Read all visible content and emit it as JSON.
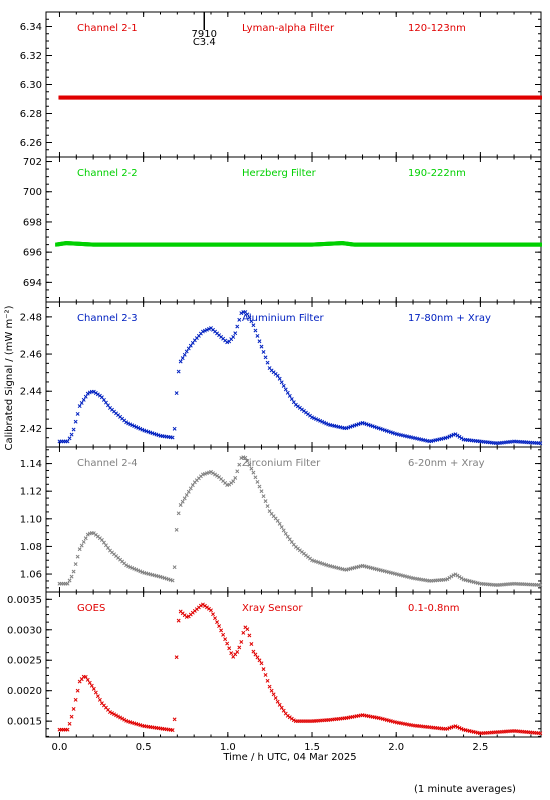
{
  "chart_data": {
    "type": "scatter",
    "ylabel": "Calibrated Signal / (mW m⁻²)",
    "xlabel": "Time / h UTC, 04 Mar 2025",
    "footnote": "(1 minute averages)",
    "x_ticks": [
      "0.0",
      "0.5",
      "1.0",
      "1.5",
      "2.0",
      "2.5"
    ],
    "xlim": [
      -0.08,
      2.86
    ],
    "flare_marker": {
      "x": 0.86,
      "line1": "7910",
      "line2": "C3.4"
    },
    "panels": [
      {
        "channel": "Channel 2-1",
        "filter": "Lyman-alpha Filter",
        "band": "120-123nm",
        "color": "#e00000",
        "ylim": [
          6.25,
          6.35
        ],
        "y_ticks": [
          "6.26",
          "6.28",
          "6.30",
          "6.32",
          "6.34"
        ],
        "x": [
          0.0,
          0.5,
          1.0,
          1.5,
          2.0,
          2.5,
          2.86
        ],
        "y": [
          6.291,
          6.291,
          6.291,
          6.291,
          6.291,
          6.291,
          6.291
        ]
      },
      {
        "channel": "Channel 2-2",
        "filter": "Herzberg Filter",
        "band": "190-222nm",
        "color": "#00d000",
        "ylim": [
          692.7,
          702.3
        ],
        "y_ticks": [
          "694",
          "696",
          "698",
          "700",
          "702"
        ],
        "x": [
          -0.02,
          0.04,
          0.2,
          0.5,
          1.0,
          1.5,
          1.68,
          1.75,
          2.0,
          2.5,
          2.86
        ],
        "y": [
          696.5,
          696.6,
          696.5,
          696.5,
          696.5,
          696.5,
          696.6,
          696.5,
          696.5,
          696.5,
          696.5
        ]
      },
      {
        "channel": "Channel 2-3",
        "filter": "Aluminium Filter",
        "band": "17-80nm + Xray",
        "color": "#0020c0",
        "ylim": [
          2.41,
          2.488
        ],
        "y_ticks": [
          "2.42",
          "2.44",
          "2.46",
          "2.48"
        ],
        "x": [
          0.0,
          0.05,
          0.08,
          0.12,
          0.17,
          0.2,
          0.25,
          0.3,
          0.4,
          0.5,
          0.6,
          0.68,
          0.69,
          0.7,
          0.72,
          0.76,
          0.8,
          0.85,
          0.9,
          0.95,
          1.0,
          1.04,
          1.08,
          1.1,
          1.12,
          1.15,
          1.2,
          1.25,
          1.3,
          1.35,
          1.4,
          1.5,
          1.6,
          1.7,
          1.8,
          1.9,
          2.0,
          2.1,
          2.2,
          2.3,
          2.35,
          2.4,
          2.5,
          2.6,
          2.7,
          2.86
        ],
        "y": [
          2.413,
          2.413,
          2.418,
          2.432,
          2.439,
          2.44,
          2.437,
          2.431,
          2.423,
          2.419,
          2.416,
          2.415,
          2.427,
          2.447,
          2.456,
          2.462,
          2.467,
          2.472,
          2.474,
          2.47,
          2.466,
          2.47,
          2.482,
          2.483,
          2.481,
          2.476,
          2.464,
          2.452,
          2.448,
          2.44,
          2.433,
          2.426,
          2.422,
          2.42,
          2.423,
          2.42,
          2.417,
          2.415,
          2.413,
          2.415,
          2.417,
          2.414,
          2.413,
          2.412,
          2.413,
          2.412
        ]
      },
      {
        "channel": "Channel 2-4",
        "filter": "Zirconium Filter",
        "band": "6-20nm + Xray",
        "color": "#808080",
        "ylim": [
          1.047,
          1.152
        ],
        "y_ticks": [
          "1.06",
          "1.08",
          "1.10",
          "1.12",
          "1.14"
        ],
        "x": [
          0.0,
          0.05,
          0.08,
          0.12,
          0.17,
          0.2,
          0.25,
          0.3,
          0.4,
          0.5,
          0.6,
          0.68,
          0.69,
          0.7,
          0.72,
          0.76,
          0.8,
          0.85,
          0.9,
          0.95,
          1.0,
          1.04,
          1.08,
          1.1,
          1.12,
          1.15,
          1.2,
          1.25,
          1.3,
          1.35,
          1.4,
          1.5,
          1.6,
          1.7,
          1.8,
          1.9,
          2.0,
          2.1,
          2.2,
          2.3,
          2.35,
          2.4,
          2.5,
          2.6,
          2.7,
          2.86
        ],
        "y": [
          1.053,
          1.053,
          1.06,
          1.078,
          1.089,
          1.09,
          1.085,
          1.077,
          1.066,
          1.061,
          1.058,
          1.055,
          1.08,
          1.1,
          1.11,
          1.118,
          1.126,
          1.132,
          1.134,
          1.13,
          1.124,
          1.128,
          1.144,
          1.145,
          1.141,
          1.134,
          1.12,
          1.105,
          1.098,
          1.088,
          1.08,
          1.07,
          1.066,
          1.063,
          1.066,
          1.063,
          1.06,
          1.057,
          1.055,
          1.056,
          1.06,
          1.056,
          1.053,
          1.052,
          1.053,
          1.052
        ]
      },
      {
        "channel": "GOES",
        "filter": "Xray Sensor",
        "band": "0.1-0.8nm",
        "color": "#e00000",
        "ylim": [
          0.00124,
          0.00362
        ],
        "y_ticks": [
          "0.0015",
          "0.0020",
          "0.0025",
          "0.0030",
          "0.0035"
        ],
        "x": [
          0.0,
          0.05,
          0.08,
          0.12,
          0.15,
          0.2,
          0.25,
          0.3,
          0.4,
          0.5,
          0.6,
          0.68,
          0.69,
          0.7,
          0.72,
          0.76,
          0.8,
          0.85,
          0.9,
          0.95,
          1.0,
          1.03,
          1.06,
          1.08,
          1.1,
          1.12,
          1.15,
          1.2,
          1.25,
          1.3,
          1.35,
          1.4,
          1.5,
          1.6,
          1.7,
          1.8,
          1.9,
          2.0,
          2.1,
          2.2,
          2.3,
          2.35,
          2.4,
          2.5,
          2.6,
          2.7,
          2.86
        ],
        "y": [
          0.00136,
          0.00136,
          0.00165,
          0.00215,
          0.00225,
          0.00205,
          0.0018,
          0.00165,
          0.0015,
          0.00142,
          0.00138,
          0.00135,
          0.0018,
          0.00305,
          0.0033,
          0.0032,
          0.0033,
          0.00342,
          0.00332,
          0.00305,
          0.00275,
          0.00255,
          0.00265,
          0.0028,
          0.00305,
          0.003,
          0.00265,
          0.00245,
          0.00205,
          0.0018,
          0.0016,
          0.0015,
          0.0015,
          0.00152,
          0.00155,
          0.0016,
          0.00155,
          0.00148,
          0.00143,
          0.0014,
          0.00137,
          0.00142,
          0.00136,
          0.0013,
          0.00132,
          0.00134,
          0.0013
        ]
      }
    ]
  }
}
